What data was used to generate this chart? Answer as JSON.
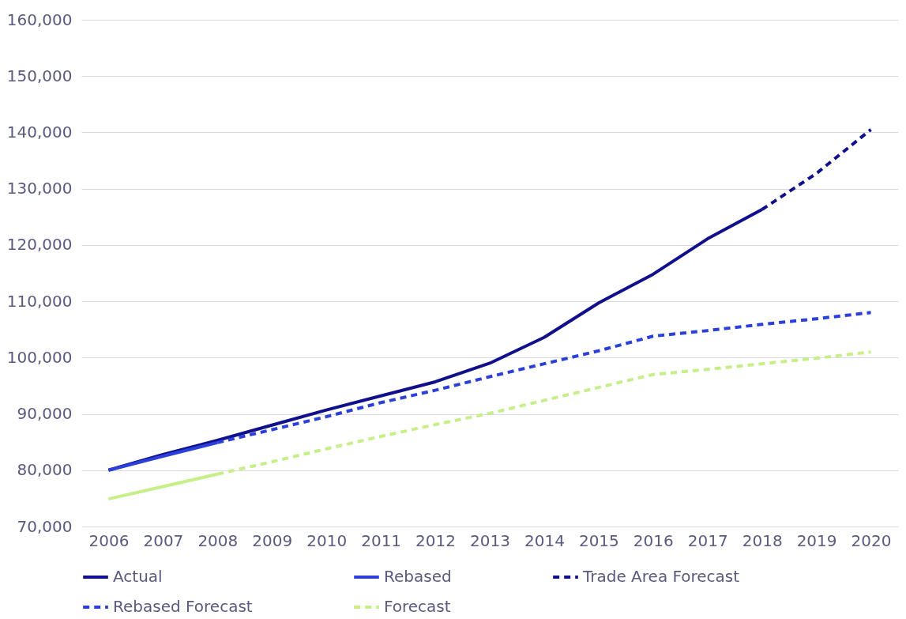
{
  "chart_data": {
    "type": "line",
    "categories": [
      "2006",
      "2007",
      "2008",
      "2009",
      "2010",
      "2011",
      "2012",
      "2013",
      "2014",
      "2015",
      "2016",
      "2017",
      "2018",
      "2019",
      "2020"
    ],
    "ylim": [
      70000,
      160000
    ],
    "yticks": [
      {
        "value": 70000,
        "label": "70,000"
      },
      {
        "value": 80000,
        "label": "80,000"
      },
      {
        "value": 90000,
        "label": "90,000"
      },
      {
        "value": 100000,
        "label": "100,000"
      },
      {
        "value": 110000,
        "label": "110,000"
      },
      {
        "value": 120000,
        "label": "120,000"
      },
      {
        "value": 130000,
        "label": "130,000"
      },
      {
        "value": 140000,
        "label": "140,000"
      },
      {
        "value": 150000,
        "label": "150,000"
      },
      {
        "value": 160000,
        "label": "160,000"
      }
    ],
    "grid": "y",
    "legend": "bottom",
    "series": [
      {
        "name": "Actual",
        "color": "#10108c",
        "line_style": "solid",
        "values": [
          80000,
          82800,
          85300,
          88000,
          90700,
          93200,
          95700,
          99000,
          103600,
          109700,
          114800,
          121100,
          126300,
          null,
          null
        ]
      },
      {
        "name": "Rebased",
        "color": "#2b3fd9",
        "line_style": "solid",
        "values": [
          80000,
          82500,
          84900,
          null,
          null,
          null,
          null,
          null,
          null,
          null,
          null,
          null,
          null,
          null,
          null
        ]
      },
      {
        "color": "#c6ef8a",
        "line_style": "solid",
        "values": [
          74900,
          77100,
          79300,
          null,
          null,
          null,
          null,
          null,
          null,
          null,
          null,
          null,
          null,
          null,
          null
        ]
      },
      {
        "name": "Trade Area Forecast",
        "color": "#10108c",
        "line_style": "dashed",
        "values": [
          null,
          null,
          null,
          null,
          null,
          null,
          null,
          null,
          null,
          null,
          null,
          null,
          126300,
          132700,
          140500
        ]
      },
      {
        "name": "Rebased Forecast",
        "color": "#2b3fd9",
        "line_style": "dashed",
        "values": [
          null,
          null,
          84900,
          87200,
          89500,
          92000,
          94200,
          96600,
          98900,
          101200,
          103800,
          104800,
          105900,
          106900,
          108000
        ]
      },
      {
        "name": "Forecast",
        "color": "#c6ef8a",
        "line_style": "dashed",
        "values": [
          null,
          null,
          79300,
          81500,
          83800,
          86000,
          88100,
          90100,
          92400,
          94700,
          97000,
          97900,
          98900,
          99900,
          101000
        ]
      }
    ]
  }
}
